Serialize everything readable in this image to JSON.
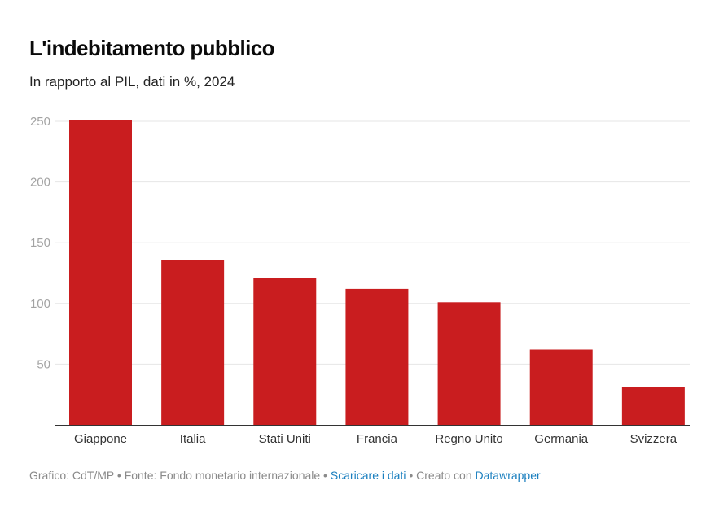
{
  "header": {
    "title": "L'indebitamento pubblico",
    "subtitle": "In rapporto al PIL, dati in %, 2024"
  },
  "footer": {
    "credit": "Grafico: CdT/MP",
    "separator": " • ",
    "source": "Fonte: Fondo monetario internazionale",
    "download_link": "Scaricare i dati",
    "created_with": "Creato con",
    "tool_link": "Datawrapper"
  },
  "colors": {
    "bar": "#c91d1f",
    "grid": "#e6e6e6",
    "axis": "#333333",
    "link": "#1a7fbf"
  },
  "chart_data": {
    "type": "bar",
    "title": "L'indebitamento pubblico",
    "subtitle": "In rapporto al PIL, dati in %, 2024",
    "xlabel": "",
    "ylabel": "",
    "categories": [
      "Giappone",
      "Italia",
      "Stati Uniti",
      "Francia",
      "Regno Unito",
      "Germania",
      "Svizzera"
    ],
    "values": [
      251,
      136,
      121,
      112,
      101,
      62,
      31
    ],
    "ylim": [
      0,
      250
    ],
    "yticks": [
      50,
      100,
      150,
      200,
      250
    ],
    "grid": true,
    "legend": "none"
  }
}
